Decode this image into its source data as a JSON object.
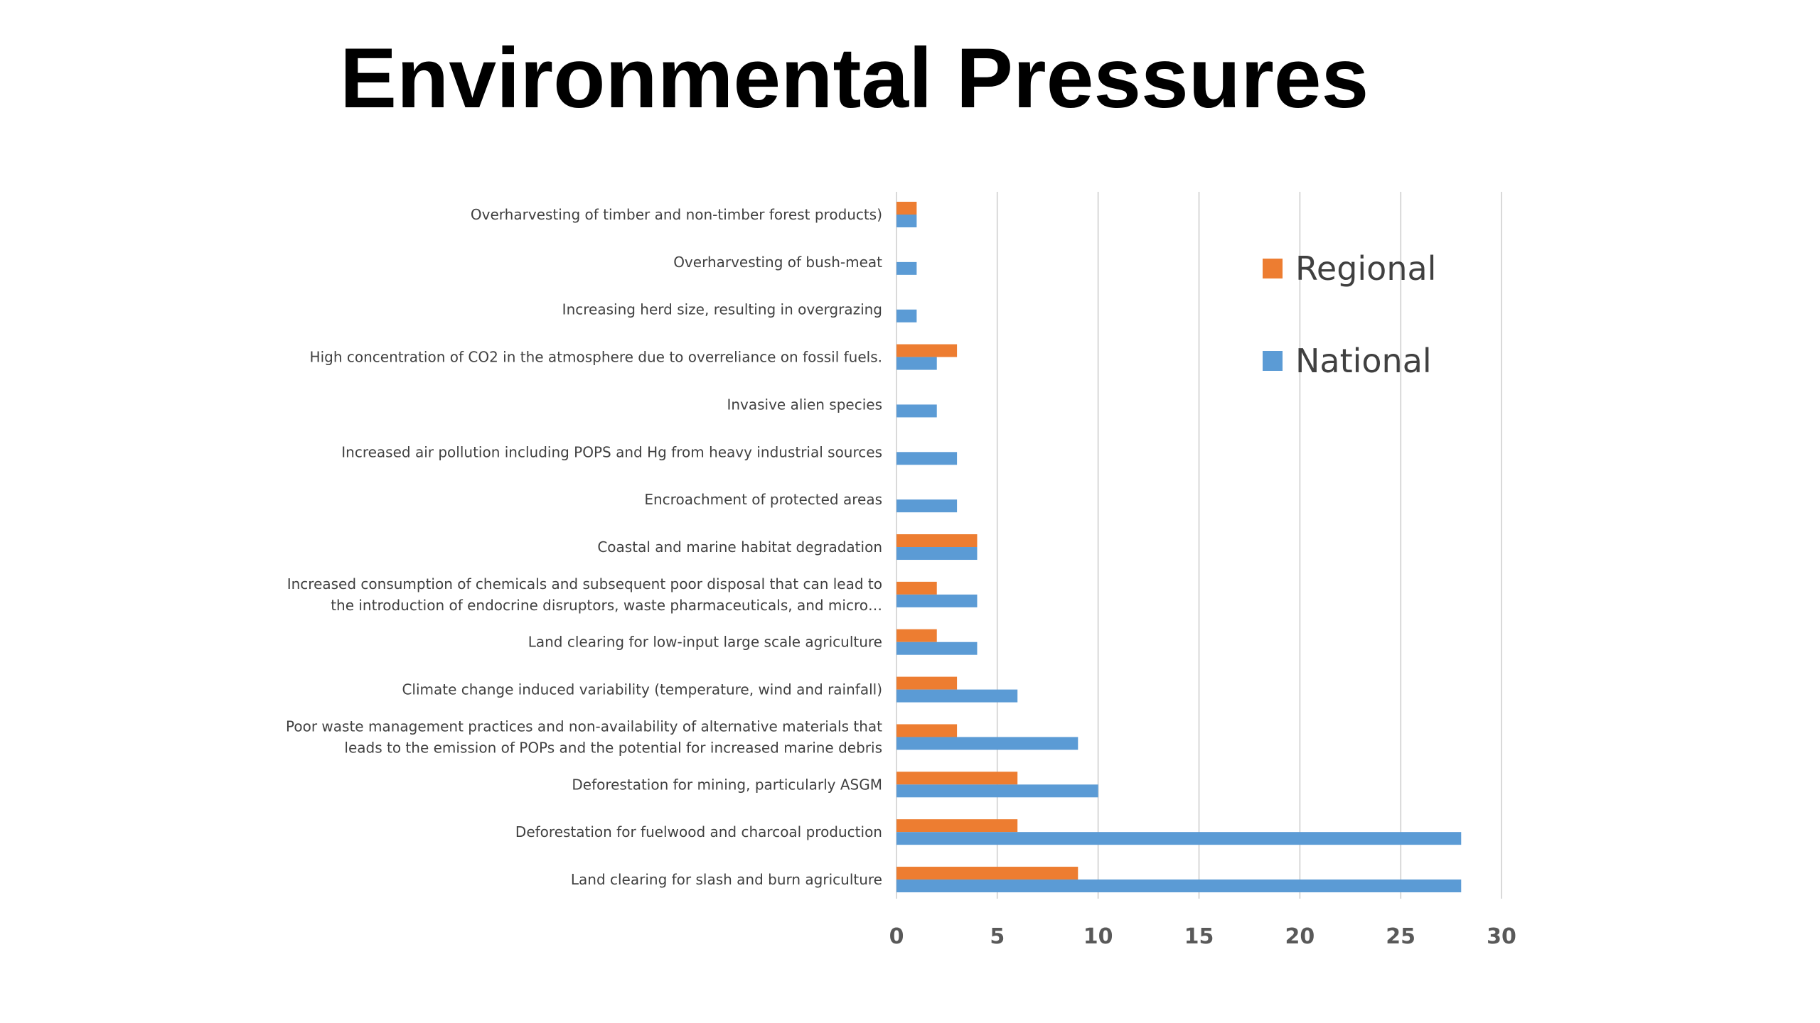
{
  "slide": {
    "title": "Environmental Pressures"
  },
  "chart_data": {
    "type": "bar",
    "orientation": "horizontal",
    "title": "",
    "xlabel": "",
    "ylabel": "",
    "xlim": [
      0,
      30
    ],
    "x_ticks": [
      0,
      5,
      10,
      15,
      20,
      25,
      30
    ],
    "grid": "vertical",
    "legend_position": "top-right",
    "categories": [
      "Overharvesting of timber and non-timber forest products)",
      "Overharvesting of bush-meat",
      "Increasing herd size, resulting in overgrazing",
      "High concentration of CO2 in the atmosphere due to overreliance on fossil fuels.",
      "Invasive alien species",
      "Increased air pollution including POPS and Hg from heavy industrial sources",
      "Encroachment of protected areas",
      "Coastal and marine habitat degradation",
      "Increased consumption of chemicals and subsequent poor disposal that can lead to the introduction of endocrine disruptors, waste pharmaceuticals, and micro…",
      "Land clearing for low-input large scale agriculture",
      "Climate change induced variability (temperature, wind and rainfall)",
      "Poor waste management practices and non-availability of alternative materials that leads to the emission of POPs and the potential for increased marine debris",
      "Deforestation for mining, particularly ASGM",
      "Deforestation for fuelwood and charcoal production",
      "Land clearing for slash and burn agriculture"
    ],
    "category_lines": [
      [
        "Overharvesting of timber and non-timber forest products)"
      ],
      [
        "Overharvesting of bush-meat"
      ],
      [
        "Increasing herd size, resulting in overgrazing"
      ],
      [
        "High concentration of CO2 in the atmosphere due to overreliance on fossil fuels."
      ],
      [
        "Invasive alien species"
      ],
      [
        "Increased air pollution including POPS and Hg from heavy industrial sources"
      ],
      [
        "Encroachment of protected areas"
      ],
      [
        "Coastal and marine habitat degradation"
      ],
      [
        "Increased consumption of chemicals and subsequent poor disposal that can lead to",
        "the introduction of endocrine disruptors, waste pharmaceuticals, and micro…"
      ],
      [
        "Land clearing for low-input large scale agriculture"
      ],
      [
        "Climate change induced variability (temperature, wind and rainfall)"
      ],
      [
        "Poor waste management practices and non-availability of alternative materials that",
        "leads to the emission of POPs and the potential for increased marine debris"
      ],
      [
        "Deforestation for mining, particularly ASGM"
      ],
      [
        "Deforestation for fuelwood and charcoal production"
      ],
      [
        "Land clearing for slash and burn agriculture"
      ]
    ],
    "series": [
      {
        "name": "Regional",
        "color": "#ED7D31",
        "values": [
          1,
          0,
          0,
          3,
          0,
          0,
          0,
          4,
          2,
          2,
          3,
          3,
          6,
          6,
          9
        ]
      },
      {
        "name": "National",
        "color": "#5B9BD5",
        "values": [
          1,
          1,
          1,
          2,
          2,
          3,
          3,
          4,
          4,
          4,
          6,
          9,
          10,
          28,
          28
        ]
      }
    ],
    "gridline_color": "#D9D9D9",
    "axis_color": "#D9D9D9"
  }
}
